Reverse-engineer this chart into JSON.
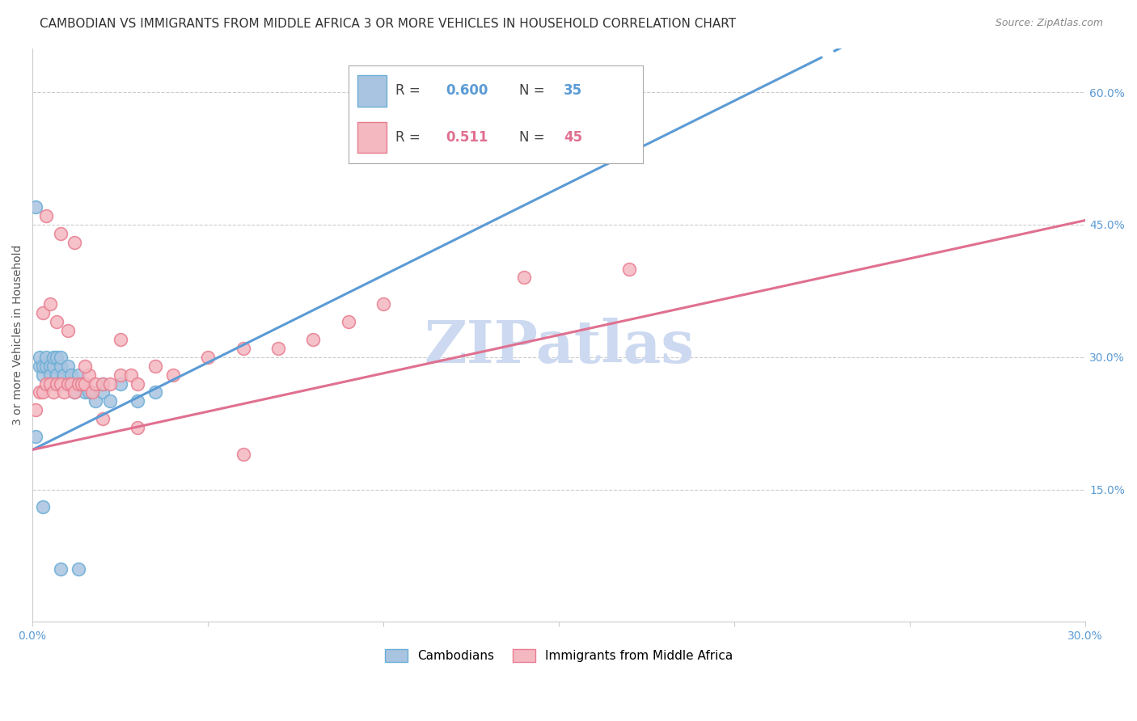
{
  "title": "CAMBODIAN VS IMMIGRANTS FROM MIDDLE AFRICA 3 OR MORE VEHICLES IN HOUSEHOLD CORRELATION CHART",
  "source": "Source: ZipAtlas.com",
  "ylabel": "3 or more Vehicles in Household",
  "xmin": 0.0,
  "xmax": 0.3,
  "ymin": 0.0,
  "ymax": 0.65,
  "x_ticks": [
    0.0,
    0.05,
    0.1,
    0.15,
    0.2,
    0.25,
    0.3
  ],
  "y_ticks_right": [
    0.15,
    0.3,
    0.45,
    0.6
  ],
  "y_tick_labels_right": [
    "15.0%",
    "30.0%",
    "45.0%",
    "60.0%"
  ],
  "cambodian_color": "#a8c4e0",
  "cambodian_edge_color": "#6baed6",
  "middle_africa_color": "#f4b8c1",
  "middle_africa_edge_color": "#e87d8f",
  "cambodian_R": 0.6,
  "cambodian_N": 35,
  "middle_africa_R": 0.511,
  "middle_africa_N": 45,
  "legend_label_1": "Cambodians",
  "legend_label_2": "Immigrants from Middle Africa",
  "watermark": "ZIPatlas",
  "cambodian_scatter_x": [
    0.001,
    0.002,
    0.002,
    0.003,
    0.003,
    0.004,
    0.004,
    0.005,
    0.005,
    0.006,
    0.006,
    0.007,
    0.007,
    0.008,
    0.008,
    0.009,
    0.01,
    0.01,
    0.011,
    0.012,
    0.013,
    0.014,
    0.015,
    0.016,
    0.018,
    0.02,
    0.022,
    0.025,
    0.03,
    0.035,
    0.001,
    0.003,
    0.008,
    0.013,
    0.02
  ],
  "cambodian_scatter_y": [
    0.21,
    0.29,
    0.3,
    0.28,
    0.29,
    0.29,
    0.3,
    0.29,
    0.28,
    0.29,
    0.3,
    0.3,
    0.28,
    0.29,
    0.3,
    0.28,
    0.29,
    0.27,
    0.28,
    0.26,
    0.28,
    0.27,
    0.26,
    0.26,
    0.25,
    0.26,
    0.25,
    0.27,
    0.25,
    0.26,
    0.47,
    0.13,
    0.06,
    0.06,
    0.27
  ],
  "middle_africa_scatter_x": [
    0.001,
    0.002,
    0.003,
    0.004,
    0.005,
    0.006,
    0.007,
    0.008,
    0.009,
    0.01,
    0.011,
    0.012,
    0.013,
    0.014,
    0.015,
    0.016,
    0.017,
    0.018,
    0.02,
    0.022,
    0.025,
    0.028,
    0.03,
    0.035,
    0.04,
    0.05,
    0.06,
    0.07,
    0.08,
    0.09,
    0.003,
    0.005,
    0.007,
    0.01,
    0.015,
    0.02,
    0.03,
    0.06,
    0.1,
    0.14,
    0.004,
    0.008,
    0.012,
    0.025,
    0.17
  ],
  "middle_africa_scatter_y": [
    0.24,
    0.26,
    0.26,
    0.27,
    0.27,
    0.26,
    0.27,
    0.27,
    0.26,
    0.27,
    0.27,
    0.26,
    0.27,
    0.27,
    0.27,
    0.28,
    0.26,
    0.27,
    0.27,
    0.27,
    0.28,
    0.28,
    0.27,
    0.29,
    0.28,
    0.3,
    0.31,
    0.31,
    0.32,
    0.34,
    0.35,
    0.36,
    0.34,
    0.33,
    0.29,
    0.23,
    0.22,
    0.19,
    0.36,
    0.39,
    0.46,
    0.44,
    0.43,
    0.32,
    0.4
  ],
  "blue_trend_color": "#5b9bd5",
  "pink_trend_color": "#e07090",
  "background_color": "#ffffff",
  "grid_color": "#cccccc",
  "title_fontsize": 11,
  "source_fontsize": 9,
  "axis_label_fontsize": 10,
  "tick_fontsize": 10,
  "watermark_color": "#ccd9f0",
  "watermark_fontsize": 52,
  "blue_line_x0": 0.0,
  "blue_line_y0": 0.195,
  "blue_line_x1": 0.22,
  "blue_line_y1": 0.63,
  "pink_line_x0": 0.0,
  "pink_line_y0": 0.195,
  "pink_line_x1": 0.3,
  "pink_line_y1": 0.455
}
